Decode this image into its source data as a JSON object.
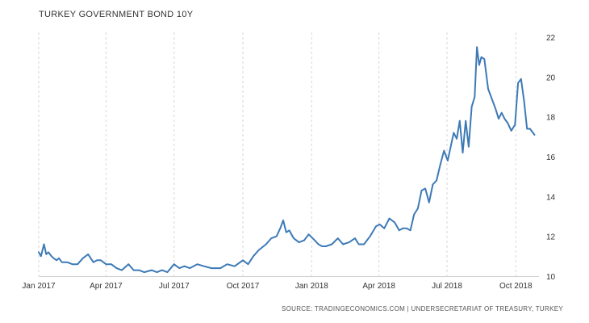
{
  "chart_data": {
    "type": "line",
    "title": "TURKEY GOVERNMENT BOND 10Y",
    "source": "SOURCE: TRADINGECONOMICS.COM | UNDERSECRETARIAT OF TREASURY, TURKEY",
    "xlabel": "",
    "ylabel": "",
    "x_ticks": [
      "Jan 2017",
      "Apr 2017",
      "Jul 2017",
      "Oct 2017",
      "Jan 2018",
      "Apr 2018",
      "Jul 2018",
      "Oct 2018"
    ],
    "y_ticks": [
      10,
      12,
      14,
      16,
      18,
      20,
      22
    ],
    "ylim": [
      10,
      22
    ],
    "grid": "vertical",
    "y_axis_side": "right",
    "line_color": "#3d7ab6",
    "series": [
      {
        "x": [
          "2017-01-01",
          "2017-01-04",
          "2017-01-08",
          "2017-01-11",
          "2017-01-14",
          "2017-01-18",
          "2017-01-21",
          "2017-01-25",
          "2017-01-28",
          "2017-02-01",
          "2017-02-08",
          "2017-02-15",
          "2017-02-22",
          "2017-03-01",
          "2017-03-08",
          "2017-03-15",
          "2017-03-20",
          "2017-03-25",
          "2017-04-01",
          "2017-04-08",
          "2017-04-15",
          "2017-04-22",
          "2017-05-01",
          "2017-05-08",
          "2017-05-15",
          "2017-05-22",
          "2017-06-01",
          "2017-06-08",
          "2017-06-15",
          "2017-06-22",
          "2017-07-01",
          "2017-07-08",
          "2017-07-15",
          "2017-07-22",
          "2017-08-01",
          "2017-08-10",
          "2017-08-20",
          "2017-09-01",
          "2017-09-10",
          "2017-09-20",
          "2017-10-01",
          "2017-10-08",
          "2017-10-15",
          "2017-10-22",
          "2017-11-01",
          "2017-11-08",
          "2017-11-15",
          "2017-11-20",
          "2017-11-24",
          "2017-11-28",
          "2017-12-02",
          "2017-12-08",
          "2017-12-15",
          "2017-12-22",
          "2017-12-28",
          "2018-01-05",
          "2018-01-10",
          "2018-01-15",
          "2018-01-20",
          "2018-01-28",
          "2018-02-05",
          "2018-02-12",
          "2018-02-20",
          "2018-02-28",
          "2018-03-05",
          "2018-03-12",
          "2018-03-20",
          "2018-03-28",
          "2018-04-02",
          "2018-04-08",
          "2018-04-15",
          "2018-04-22",
          "2018-04-28",
          "2018-05-03",
          "2018-05-08",
          "2018-05-13",
          "2018-05-18",
          "2018-05-23",
          "2018-05-28",
          "2018-06-02",
          "2018-06-07",
          "2018-06-12",
          "2018-06-17",
          "2018-06-22",
          "2018-06-27",
          "2018-07-02",
          "2018-07-06",
          "2018-07-10",
          "2018-07-14",
          "2018-07-18",
          "2018-07-22",
          "2018-07-26",
          "2018-07-30",
          "2018-08-03",
          "2018-08-07",
          "2018-08-10",
          "2018-08-13",
          "2018-08-16",
          "2018-08-20",
          "2018-08-25",
          "2018-08-30",
          "2018-09-04",
          "2018-09-08",
          "2018-09-12",
          "2018-09-16",
          "2018-09-20",
          "2018-09-25",
          "2018-09-30",
          "2018-10-04",
          "2018-10-08",
          "2018-10-12",
          "2018-10-16",
          "2018-10-20",
          "2018-10-26"
        ],
        "values": [
          11.2,
          11.0,
          11.6,
          11.1,
          11.2,
          11.0,
          10.9,
          10.8,
          10.9,
          10.7,
          10.7,
          10.6,
          10.6,
          10.9,
          11.1,
          10.7,
          10.8,
          10.8,
          10.6,
          10.6,
          10.4,
          10.3,
          10.6,
          10.3,
          10.3,
          10.2,
          10.3,
          10.2,
          10.3,
          10.2,
          10.6,
          10.4,
          10.5,
          10.4,
          10.6,
          10.5,
          10.4,
          10.4,
          10.6,
          10.5,
          10.8,
          10.6,
          11.0,
          11.3,
          11.6,
          11.9,
          12.0,
          12.4,
          12.8,
          12.2,
          12.3,
          11.9,
          11.7,
          11.8,
          12.1,
          11.8,
          11.6,
          11.5,
          11.5,
          11.6,
          11.9,
          11.6,
          11.7,
          11.9,
          11.6,
          11.6,
          12.0,
          12.5,
          12.6,
          12.4,
          12.9,
          12.7,
          12.3,
          12.4,
          12.4,
          12.3,
          13.1,
          13.4,
          14.3,
          14.4,
          13.7,
          14.6,
          14.8,
          15.6,
          16.3,
          15.8,
          16.5,
          17.2,
          16.9,
          17.8,
          16.2,
          17.8,
          16.5,
          18.5,
          19.0,
          21.5,
          20.6,
          21.0,
          20.9,
          19.4,
          18.9,
          18.4,
          17.9,
          18.2,
          17.9,
          17.7,
          17.3,
          17.6,
          19.7,
          19.9,
          18.8,
          17.4,
          17.4,
          17.1
        ]
      }
    ]
  }
}
